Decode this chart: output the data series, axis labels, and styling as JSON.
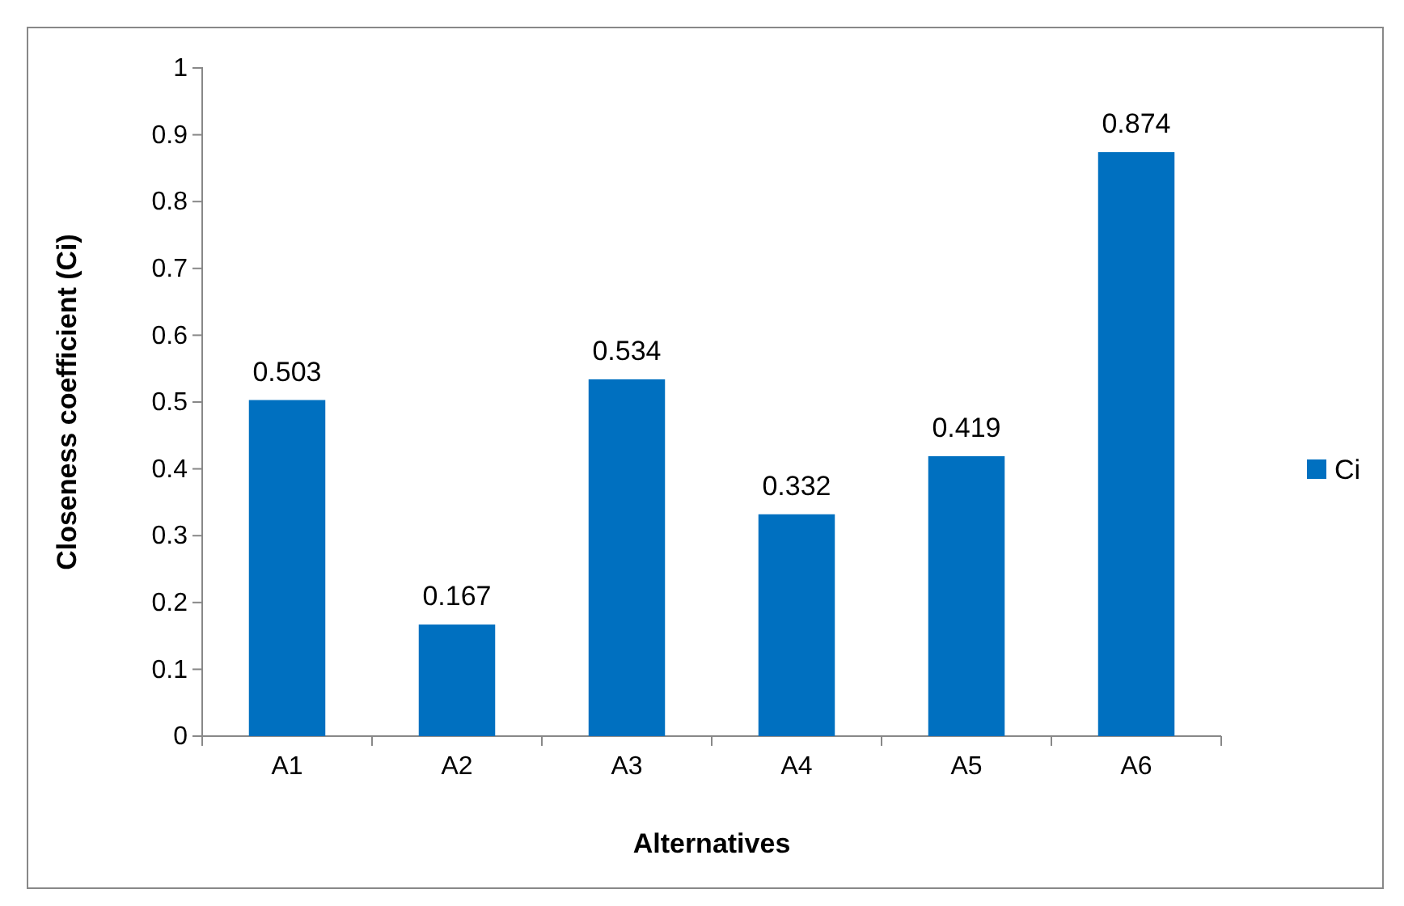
{
  "chart_data": {
    "type": "bar",
    "xlabel": "Alternatives",
    "ylabel": "Closeness coefficient (Ci)",
    "categories": [
      "A1",
      "A2",
      "A3",
      "A4",
      "A5",
      "A6"
    ],
    "series": [
      {
        "name": "Ci",
        "color": "#0070c0",
        "values": [
          0.503,
          0.167,
          0.534,
          0.332,
          0.419,
          0.874
        ]
      }
    ],
    "ylim": [
      0,
      1
    ],
    "yticks": [
      0,
      0.1,
      0.2,
      0.3,
      0.4,
      0.5,
      0.6,
      0.7,
      0.8,
      0.9,
      1
    ],
    "data_labels": true,
    "legend": "right",
    "grid": false
  }
}
